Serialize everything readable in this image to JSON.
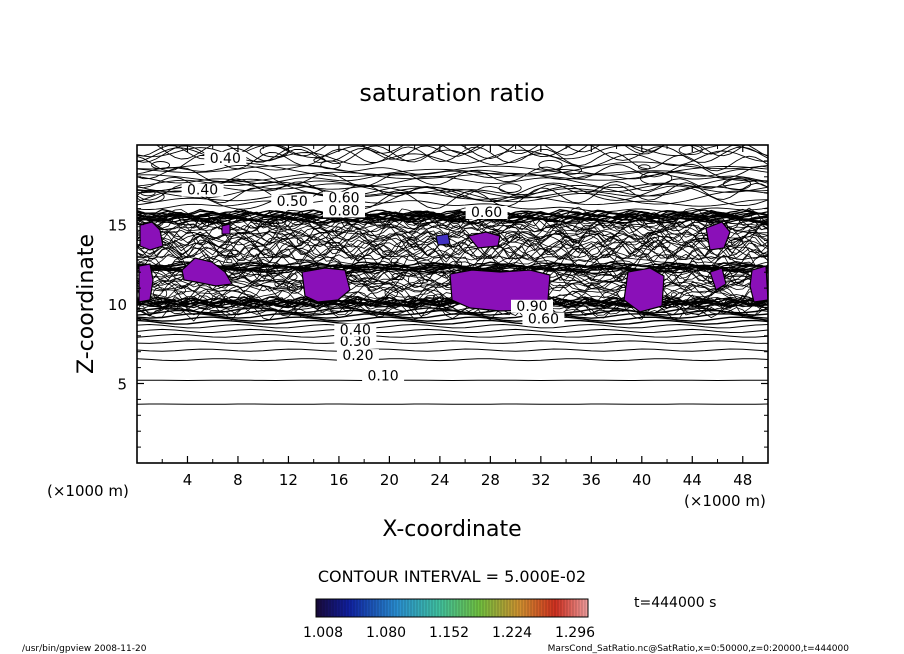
{
  "chart_data": {
    "type": "contour",
    "title": "saturation ratio",
    "xlabel": "X-coordinate",
    "ylabel": "Z-coordinate",
    "x_unit": "(×1000 m)",
    "x_unit_right": "(×1000 m)",
    "y_unit": "(×1000 m)",
    "xlim": [
      0,
      50
    ],
    "ylim": [
      0,
      20
    ],
    "x_ticks": [
      4,
      8,
      12,
      16,
      20,
      24,
      28,
      32,
      36,
      40,
      44,
      48
    ],
    "y_ticks": [
      5,
      10,
      15
    ],
    "contour_interval_text": "CONTOUR INTERVAL = 5.000E-02",
    "time_text": "t=444000 s",
    "colorbar_labels": [
      "1.008",
      "1.080",
      "1.152",
      "1.224",
      "1.296"
    ],
    "contour_labels": [
      {
        "text": "0.10",
        "x": 19.5,
        "z": 5.3
      },
      {
        "text": "0.20",
        "x": 17.5,
        "z": 6.6
      },
      {
        "text": "0.30",
        "x": 17.3,
        "z": 7.5
      },
      {
        "text": "0.40",
        "x": 17.3,
        "z": 8.2
      },
      {
        "text": "0.40",
        "x": 5.2,
        "z": 17.0
      },
      {
        "text": "0.40",
        "x": 7.0,
        "z": 19.0
      },
      {
        "text": "0.50",
        "x": 12.3,
        "z": 16.3
      },
      {
        "text": "0.60",
        "x": 16.4,
        "z": 16.5
      },
      {
        "text": "0.60",
        "x": 27.7,
        "z": 15.6
      },
      {
        "text": "0.60",
        "x": 32.2,
        "z": 8.9
      },
      {
        "text": "0.80",
        "x": 16.4,
        "z": 15.7
      },
      {
        "text": "0.90",
        "x": 31.3,
        "z": 9.7
      }
    ],
    "supersaturated_min": 1.008
  },
  "footer": {
    "left": "/usr/bin/gpview   2008-11-20",
    "right": "MarsCond_SatRatio.nc@SatRatio,x=0:50000,z=0:20000,t=444000"
  }
}
